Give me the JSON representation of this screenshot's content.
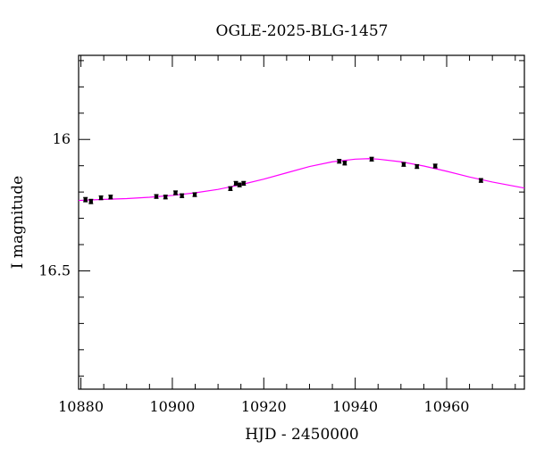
{
  "chart_data": {
    "type": "scatter",
    "title": "OGLE-2025-BLG-1457",
    "xlabel": "HJD - 2450000",
    "ylabel": "I magnitude",
    "xlim": [
      10879.5,
      10977
    ],
    "ylim": [
      16.95,
      15.68
    ],
    "y_inverted": true,
    "x_major_ticks": [
      10880,
      10900,
      10920,
      10940,
      10960
    ],
    "x_minor_step": 5,
    "y_major_ticks": [
      16.0,
      16.5
    ],
    "y_tick_labels": [
      "16",
      "16.5"
    ],
    "y_minor_step": 0.1,
    "grid": false,
    "colors": {
      "points": "#000000",
      "model": "#ff00ff",
      "axes": "#000000"
    },
    "series": [
      {
        "type": "scatter",
        "x": [
          10881.0,
          10882.2,
          10884.4,
          10886.5,
          10896.5,
          10898.5,
          10900.7,
          10902.1,
          10904.9,
          10912.7,
          10913.9,
          10914.7,
          10915.6,
          10936.5,
          10937.7,
          10943.6,
          10950.6,
          10953.5,
          10957.5,
          10967.5
        ],
        "y": [
          16.229,
          16.236,
          16.222,
          16.219,
          16.217,
          16.219,
          16.203,
          16.214,
          16.21,
          16.187,
          16.167,
          16.173,
          16.167,
          16.083,
          16.09,
          16.075,
          16.095,
          16.103,
          16.101,
          16.156
        ],
        "yerr": [
          0.008,
          0.008,
          0.007,
          0.007,
          0.007,
          0.007,
          0.007,
          0.007,
          0.007,
          0.007,
          0.007,
          0.007,
          0.007,
          0.007,
          0.007,
          0.007,
          0.007,
          0.007,
          0.007,
          0.007
        ]
      },
      {
        "type": "line",
        "x": [
          10879.5,
          10885,
          10890,
          10895,
          10900,
          10905,
          10910,
          10915,
          10920,
          10925,
          10930,
          10935,
          10940,
          10943,
          10945,
          10950,
          10955,
          10960,
          10965,
          10970,
          10977
        ],
        "y": [
          16.232,
          16.228,
          16.225,
          16.22,
          16.213,
          16.203,
          16.19,
          16.172,
          16.151,
          16.127,
          16.103,
          16.085,
          16.075,
          16.073,
          16.075,
          16.085,
          16.101,
          16.121,
          16.143,
          16.162,
          16.185
        ]
      }
    ]
  }
}
